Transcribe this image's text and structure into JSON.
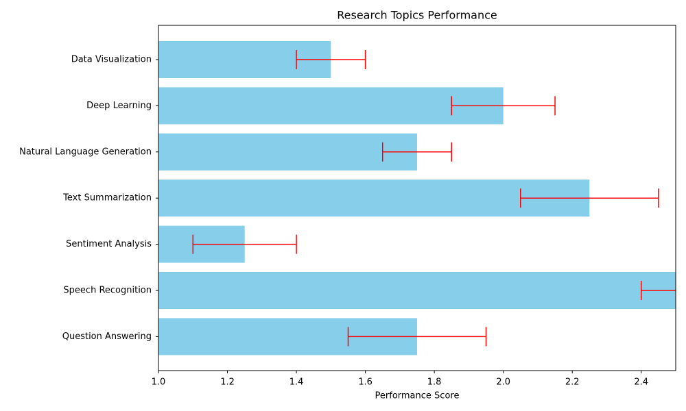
{
  "chart_data": {
    "type": "barh",
    "title": "Research Topics Performance",
    "x_label": "Performance Score",
    "categories": [
      "Data Visualization",
      "Deep Learning",
      "Natural Language Generation",
      "Text Summarization",
      "Sentiment Analysis",
      "Speech Recognition",
      "Question Answering"
    ],
    "values": [
      1.5,
      2.0,
      1.75,
      2.25,
      1.25,
      2.5,
      1.75
    ],
    "errors": [
      0.1,
      0.15,
      0.1,
      0.2,
      0.15,
      0.1,
      0.2
    ],
    "color": "#87ceeb",
    "error_color": "#ff0000",
    "xlim": [
      1.0,
      2.5
    ],
    "xticks": [
      {
        "value": 1,
        "label": "1.0"
      },
      1.2,
      1.4,
      1.6,
      1.8,
      {
        "value": 2,
        "label": "2.0"
      },
      2.2,
      2.4
    ],
    "grid": false
  }
}
